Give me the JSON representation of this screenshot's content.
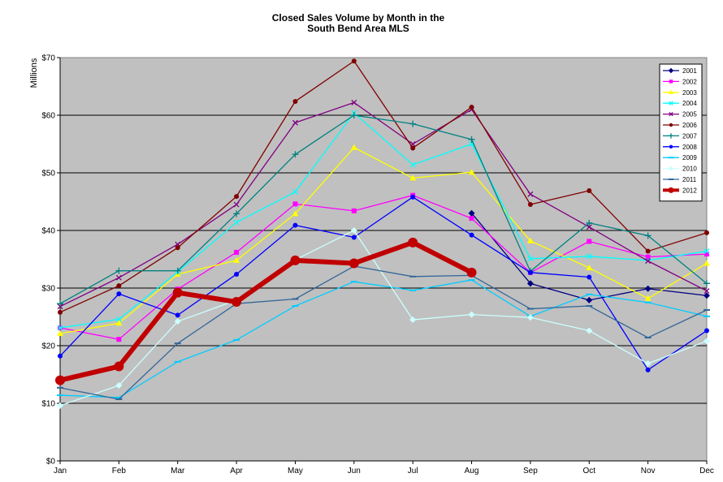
{
  "chart_data": {
    "type": "line",
    "title": [
      "Closed Sales Volume by Month in the",
      "South Bend Area MLS"
    ],
    "ylabel": "Millions",
    "xlabel": "",
    "categories": [
      "Jan",
      "Feb",
      "Mar",
      "Apr",
      "May",
      "Jun",
      "Jul",
      "Aug",
      "Sep",
      "Oct",
      "Nov",
      "Dec"
    ],
    "ylim": [
      0,
      70
    ],
    "ytick_values": [
      0,
      10,
      20,
      30,
      40,
      50,
      60,
      70
    ],
    "ytick_labels": [
      "$0",
      "$10",
      "$20",
      "$30",
      "$40",
      "$50",
      "$60",
      "$70"
    ],
    "grid": "horizontal",
    "plot_background": "#c0c0c0",
    "legend_position": "top-right",
    "series": [
      {
        "name": "2001",
        "color": "#000080",
        "marker": "diamond",
        "values": [
          null,
          null,
          null,
          null,
          null,
          null,
          null,
          43.0,
          30.8,
          27.9,
          29.9,
          28.7
        ]
      },
      {
        "name": "2002",
        "color": "#ff00ff",
        "marker": "square",
        "values": [
          23.1,
          21.1,
          29.8,
          36.2,
          44.6,
          43.4,
          46.1,
          42.1,
          32.7,
          38.1,
          35.4,
          35.9
        ]
      },
      {
        "name": "2003",
        "color": "#ffff00",
        "marker": "triangle",
        "values": [
          22.1,
          23.9,
          32.4,
          34.8,
          42.9,
          54.4,
          49.1,
          50.1,
          38.2,
          33.5,
          28.2,
          34.3
        ]
      },
      {
        "name": "2004",
        "color": "#00ffff",
        "marker": "x",
        "values": [
          23.1,
          24.6,
          32.8,
          41.4,
          46.7,
          60.4,
          51.4,
          55.0,
          35.1,
          35.5,
          34.8,
          36.4
        ]
      },
      {
        "name": "2005",
        "color": "#800080",
        "marker": "x",
        "values": [
          26.8,
          31.8,
          37.6,
          44.5,
          58.7,
          62.2,
          55.0,
          61.0,
          46.3,
          40.6,
          34.7,
          29.5
        ]
      },
      {
        "name": "2006",
        "color": "#800000",
        "marker": "circle",
        "values": [
          25.8,
          30.4,
          37.0,
          45.9,
          62.4,
          69.4,
          54.3,
          61.4,
          44.5,
          46.9,
          36.4,
          39.6
        ]
      },
      {
        "name": "2007",
        "color": "#008080",
        "marker": "plus",
        "values": [
          27.3,
          33.0,
          33.0,
          42.9,
          53.2,
          60.0,
          58.5,
          55.8,
          32.9,
          41.3,
          39.1,
          30.8
        ]
      },
      {
        "name": "2008",
        "color": "#0000ff",
        "marker": "circle",
        "values": [
          18.2,
          29.0,
          25.3,
          32.4,
          40.9,
          38.8,
          45.8,
          39.2,
          32.7,
          31.9,
          15.8,
          22.6
        ]
      },
      {
        "name": "2009",
        "color": "#00ccff",
        "marker": "dash",
        "values": [
          11.4,
          11.0,
          17.2,
          21.0,
          26.9,
          31.1,
          29.6,
          31.4,
          25.1,
          28.9,
          27.5,
          25.1
        ]
      },
      {
        "name": "2010",
        "color": "#ccffff",
        "marker": "diamond",
        "values": [
          9.6,
          13.1,
          24.2,
          27.9,
          34.9,
          40.0,
          24.5,
          25.4,
          24.9,
          22.6,
          16.9,
          20.8
        ]
      },
      {
        "name": "2011",
        "color": "#336699",
        "marker": "dash",
        "values": [
          12.7,
          10.7,
          20.4,
          27.3,
          28.1,
          33.8,
          32.0,
          32.2,
          26.4,
          26.9,
          21.4,
          26.2
        ]
      },
      {
        "name": "2012",
        "color": "#c00000",
        "marker": "circle",
        "bold": true,
        "values": [
          14.0,
          16.4,
          29.2,
          27.6,
          34.8,
          34.3,
          37.9,
          32.7,
          null,
          null,
          null,
          null
        ]
      }
    ]
  }
}
